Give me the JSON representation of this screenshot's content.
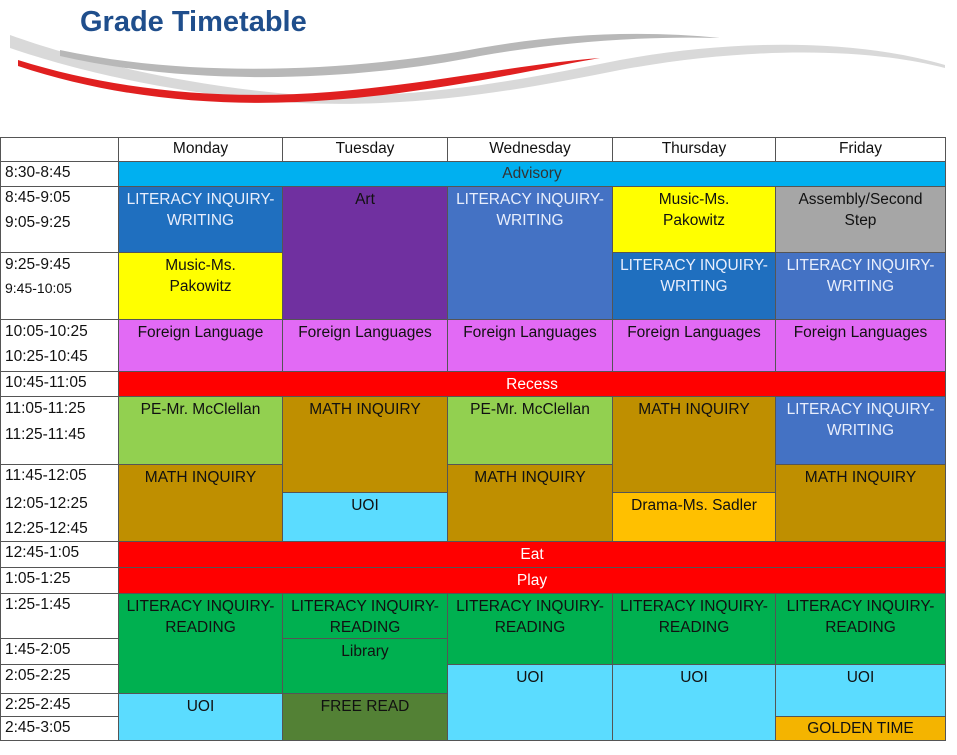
{
  "title": "Grade Timetable",
  "days": [
    "Monday",
    "Tuesday",
    "Wednesday",
    "Thursday",
    "Friday"
  ],
  "times": [
    "8:30-8:45",
    "8:45-9:05",
    "9:05-9:25",
    "9:25-9:45",
    "9:45-10:05",
    "10:05-10:25",
    "10:25-10:45",
    "10:45-11:05",
    "11:05-11:25",
    "11:25-11:45",
    "11:45-12:05",
    "12:05-12:25",
    "12:25-12:45",
    "12:45-1:05",
    "1:05-1:25",
    "1:25-1:45",
    "1:45-2:05",
    "2:05-2:25",
    "2:25-2:45",
    "2:45-3:05"
  ],
  "colors": {
    "advisory": "#00b0f0",
    "literacy_writing": "#1f6fbf",
    "literacy_writing_light": "#4472c4",
    "art": "#7030a0",
    "music": "#ffff00",
    "assembly": "#a6a6a6",
    "foreign": "#e26af5",
    "red": "#ff0000",
    "pe": "#92d050",
    "math": "#bf8f00",
    "uoi": "#5bdcff",
    "drama": "#ffc000",
    "literacy_reading": "#00b050",
    "free_read": "#538135",
    "golden": "#f4b400"
  },
  "bars": {
    "advisory": "Advisory",
    "recess": "Recess",
    "eat": "Eat",
    "play": "Play"
  },
  "cells": {
    "mon_lit_writing": "LITERACY INQUIRY-WRITING",
    "mon_music": "Music-Ms. Pakowitz",
    "mon_foreign": "Foreign Language",
    "mon_pe": "PE-Mr. McClellan",
    "mon_math": "MATH INQUIRY",
    "mon_lit_reading": "LITERACY INQUIRY-READING",
    "mon_uoi": "UOI",
    "tue_art": "Art",
    "tue_foreign": "Foreign Languages",
    "tue_math": "MATH INQUIRY",
    "tue_uoi": "UOI",
    "tue_lit_reading": "LITERACY INQUIRY-READING",
    "tue_library": "Library",
    "tue_free_read": "FREE READ",
    "wed_lit_writing": "LITERACY INQUIRY-WRITING",
    "wed_foreign": "Foreign Languages",
    "wed_pe": "PE-Mr. McClellan",
    "wed_math": "MATH INQUIRY",
    "wed_lit_reading": "LITERACY INQUIRY-READING",
    "wed_uoi": "UOI",
    "thu_music": "Music-Ms. Pakowitz",
    "thu_lit_writing": "LITERACY INQUIRY-WRITING",
    "thu_foreign": "Foreign Languages",
    "thu_math": "MATH INQUIRY",
    "thu_drama": "Drama-Ms. Sadler",
    "thu_lit_reading": "LITERACY INQUIRY-READING",
    "thu_uoi": "UOI",
    "fri_assembly": "Assembly/Second Step",
    "fri_lit_writing": "LITERACY INQUIRY-WRITING",
    "fri_foreign": "Foreign Languages",
    "fri_lit_writing_2": "LITERACY INQUIRY-WRITING",
    "fri_math": "MATH INQUIRY",
    "fri_lit_reading": "LITERACY INQUIRY-READING",
    "fri_uoi": "UOI",
    "fri_golden": "GOLDEN TIME"
  }
}
